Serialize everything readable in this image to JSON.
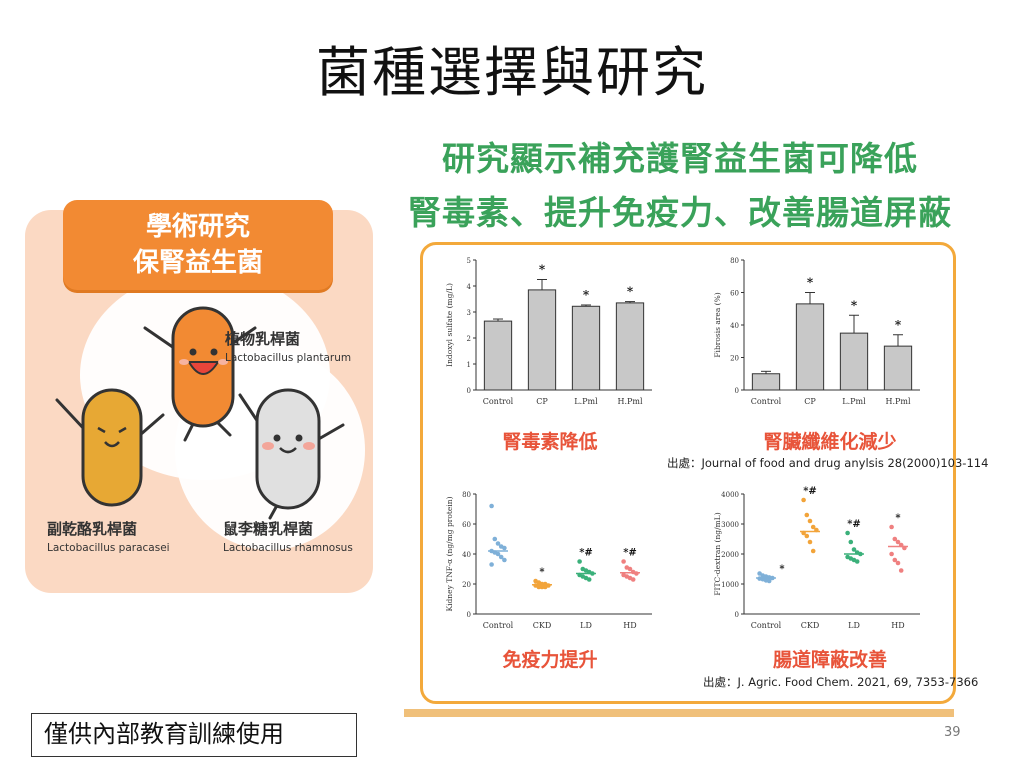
{
  "slide": {
    "title": "菌種選擇與研究",
    "footer_note": "僅供內部教育訓練使用",
    "page_number": "39"
  },
  "left_panel": {
    "banner_line1": "學術研究",
    "banner_line2": "保腎益生菌",
    "bacteria": [
      {
        "name": "植物乳桿菌",
        "latin": "Lactobacillus plantarum",
        "color": "#f28a33"
      },
      {
        "name": "副乾酪乳桿菌",
        "latin": "Lactobacillus paracasei",
        "color": "#e7a834"
      },
      {
        "name": "鼠李糖乳桿菌",
        "latin": "Lactobacillus rhamnosus",
        "color": "#dcdcdc"
      }
    ]
  },
  "right_panel": {
    "headline_line1": "研究顯示補充護腎益生菌可降低",
    "headline_line2": "腎毒素、提升免疫力、改善腸道屏蔽",
    "source1": "出處：Journal of food and drug anylsis 28(2000)103-114",
    "source2": "出處：J. Agric. Food Chem. 2021, 69, 7353-7366"
  },
  "chart_data": [
    {
      "type": "bar",
      "caption": "腎毒素降低",
      "ylabel": "Indoxyl sulfate (mg/L)",
      "categories": [
        "Control",
        "CP",
        "L.Pml",
        "H.Pml"
      ],
      "values": [
        2.65,
        3.85,
        3.22,
        3.35
      ],
      "errors": [
        0.08,
        0.4,
        0.05,
        0.05
      ],
      "markers": [
        "",
        "*",
        "*",
        "*"
      ],
      "ylim": [
        0,
        5
      ],
      "yticks": [
        0,
        1,
        2,
        3,
        4,
        5
      ]
    },
    {
      "type": "bar",
      "caption": "腎臟纖維化減少",
      "ylabel": "Fibrosis area (%)",
      "categories": [
        "Control",
        "CP",
        "L.Pml",
        "H.Pml"
      ],
      "values": [
        10,
        53,
        35,
        27
      ],
      "errors": [
        1.5,
        7,
        11,
        7
      ],
      "markers": [
        "",
        "*",
        "*",
        "*"
      ],
      "ylim": [
        0,
        80
      ],
      "yticks": [
        0,
        20,
        40,
        60,
        80
      ]
    },
    {
      "type": "scatter",
      "caption": "免疫力提升",
      "ylabel": "Kidney TNF-α (ng/mg protein)",
      "categories": [
        "Control",
        "CKD",
        "LD",
        "HD"
      ],
      "colors": [
        "#7fb0d8",
        "#f2a43a",
        "#3bb07a",
        "#ef8080"
      ],
      "points": [
        [
          72,
          50,
          47,
          45,
          44,
          42,
          41,
          40,
          38,
          36,
          33
        ],
        [
          22,
          21,
          20,
          20,
          19,
          19,
          18,
          18,
          18
        ],
        [
          35,
          30,
          29,
          28,
          27,
          26,
          25,
          24,
          23
        ],
        [
          35,
          31,
          30,
          28,
          27,
          26,
          25,
          24,
          23
        ]
      ],
      "means": [
        42,
        19.5,
        27,
        27.5
      ],
      "markers": [
        "",
        "*",
        "*#",
        "*#"
      ],
      "ylim": [
        0,
        80
      ],
      "yticks": [
        0,
        20,
        40,
        60,
        80
      ]
    },
    {
      "type": "scatter",
      "caption": "腸道障蔽改善",
      "ylabel": "FITC-dextran (ng/mL)",
      "categories": [
        "Control",
        "CKD",
        "LD",
        "HD"
      ],
      "colors": [
        "#7fb0d8",
        "#f2a43a",
        "#3bb07a",
        "#ef8080"
      ],
      "points": [
        [
          1350,
          1280,
          1250,
          1220,
          1200,
          1180,
          1160,
          1120,
          1100
        ],
        [
          3800,
          3300,
          3100,
          2900,
          2800,
          2700,
          2600,
          2400,
          2100
        ],
        [
          2700,
          2400,
          2150,
          2050,
          2000,
          1900,
          1850,
          1800,
          1750
        ],
        [
          2900,
          2500,
          2400,
          2300,
          2200,
          2000,
          1800,
          1700,
          1450
        ]
      ],
      "means": [
        1200,
        2750,
        2000,
        2250
      ],
      "markers": [
        "*",
        "*#",
        "*#",
        "*"
      ],
      "ylim": [
        0,
        4000
      ],
      "yticks": [
        0,
        1000,
        2000,
        3000,
        4000
      ]
    }
  ]
}
